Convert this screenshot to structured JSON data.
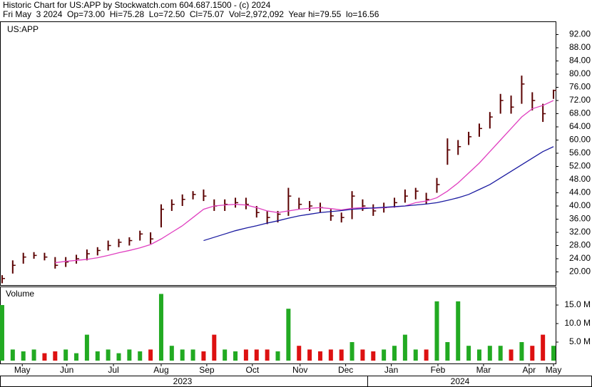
{
  "chart_data": {
    "type": "ohlc",
    "title": "Historic Chart for US:APP by Stockwatch.com 604.687.1500 - (c) 2024",
    "subtitle": "Fri May  3 2024  Op=73.00  Hi=75.28  Lo=72.50  Cl=75.07  Vol=2,972,092  Year hi=79.55  lo=16.56",
    "symbol": "US:APP",
    "volume_label": "Volume",
    "x": [
      0,
      1,
      2,
      3,
      4,
      5,
      6,
      7,
      8,
      9,
      10,
      11,
      12,
      13,
      14,
      15,
      16,
      17,
      18,
      19,
      20,
      21,
      22,
      23,
      24,
      25,
      26,
      27,
      28,
      29,
      30,
      31,
      32,
      33,
      34,
      35,
      36,
      37,
      38,
      39,
      40,
      41,
      42,
      43,
      44,
      45,
      46,
      47,
      48,
      49,
      50,
      51,
      52
    ],
    "xlim": [
      -0.2,
      52.2
    ],
    "xticks": [
      {
        "value": 1.9,
        "label": "May"
      },
      {
        "value": 6.1,
        "label": "Jun"
      },
      {
        "value": 10.5,
        "label": "Jul"
      },
      {
        "value": 15,
        "label": "Aug"
      },
      {
        "value": 19.3,
        "label": "Sep"
      },
      {
        "value": 23.6,
        "label": "Oct"
      },
      {
        "value": 28.1,
        "label": "Nov"
      },
      {
        "value": 32.4,
        "label": "Dec"
      },
      {
        "value": 36.7,
        "label": "Jan"
      },
      {
        "value": 41.1,
        "label": "Feb"
      },
      {
        "value": 45.4,
        "label": "Mar"
      },
      {
        "value": 49.7,
        "label": "Apr"
      },
      {
        "value": 52,
        "label": "May"
      }
    ],
    "years": [
      "2023",
      "2024"
    ],
    "high": [
      19,
      23.5,
      25.8,
      26,
      25.8,
      24.5,
      24.5,
      25.2,
      26.8,
      27.5,
      29.5,
      30,
      30.5,
      32.5,
      32,
      40.5,
      42,
      43.5,
      44.5,
      45,
      42,
      42,
      42.5,
      42.5,
      40,
      38.5,
      38.5,
      45.5,
      42.5,
      41.5,
      41,
      39,
      38,
      44.5,
      42,
      40.5,
      41,
      42.5,
      45,
      45.5,
      44,
      48.5,
      60.5,
      60,
      62.5,
      65,
      68.5,
      74,
      73.5,
      79.55,
      74.5,
      71,
      75.28
    ],
    "low": [
      16.56,
      19.5,
      22.5,
      24,
      23.5,
      21,
      21.5,
      22.5,
      23.5,
      25,
      26.5,
      27.5,
      28,
      29.5,
      28.5,
      33.5,
      38.5,
      40,
      42,
      41.5,
      38.5,
      38.5,
      39.5,
      39,
      36.5,
      34.5,
      35,
      37,
      39,
      38.5,
      38,
      35.5,
      35,
      36,
      38.5,
      37,
      38,
      39.5,
      41,
      42,
      40.5,
      44,
      52.5,
      55.5,
      58.5,
      61,
      63.5,
      68,
      68,
      71,
      69,
      65.5,
      72.5
    ],
    "close": [
      18,
      22,
      24.5,
      25,
      24.5,
      22,
      23,
      24,
      25.5,
      26.5,
      28,
      29,
      29.5,
      31.5,
      30,
      39,
      40.5,
      42,
      43.5,
      43,
      40,
      40.5,
      41,
      40.5,
      38,
      36.5,
      37.5,
      43,
      40.5,
      40,
      39.5,
      37,
      36.5,
      43,
      40,
      38.5,
      39.5,
      41,
      43,
      44.5,
      42,
      46.5,
      57,
      58,
      61,
      63.5,
      67,
      72,
      70,
      77,
      72,
      68,
      75.07
    ],
    "bar_color": "#5a0000",
    "series": [
      {
        "name": "short average",
        "color": "#e040c0",
        "values": [
          null,
          null,
          null,
          null,
          null,
          22.8,
          23.2,
          23.5,
          23.8,
          24.3,
          25,
          25.8,
          26.5,
          27.3,
          28.3,
          30,
          32,
          34,
          36.5,
          39,
          40,
          40.3,
          40.5,
          40.3,
          39.5,
          38.5,
          38,
          38.5,
          39,
          39.3,
          39.5,
          39.2,
          38.8,
          39.3,
          39.5,
          39.3,
          39.5,
          39.7,
          40,
          41,
          41.5,
          42.5,
          44.5,
          47,
          50,
          53,
          56.5,
          60,
          63.5,
          67,
          69.5,
          70.5,
          72
        ]
      },
      {
        "name": "long average",
        "color": "#1a1aa0",
        "values": [
          null,
          null,
          null,
          null,
          null,
          null,
          null,
          null,
          null,
          null,
          null,
          null,
          null,
          null,
          null,
          null,
          null,
          null,
          null,
          29.5,
          30.5,
          31.5,
          32.5,
          33.3,
          34,
          34.8,
          35.5,
          36.3,
          37,
          37.5,
          38,
          38.3,
          38.6,
          39,
          39.2,
          39.4,
          39.6,
          39.8,
          40,
          40.3,
          40.6,
          41,
          41.7,
          42.5,
          43.5,
          45,
          46.5,
          48.5,
          50.5,
          52.5,
          54.5,
          56.5,
          58
        ]
      }
    ],
    "ylim": [
      16,
      96
    ],
    "yticks": [
      {
        "value": 20,
        "label": "20.00"
      },
      {
        "value": 24,
        "label": "24.00"
      },
      {
        "value": 28,
        "label": "28.00"
      },
      {
        "value": 32,
        "label": "32.00"
      },
      {
        "value": 36,
        "label": "36.00"
      },
      {
        "value": 40,
        "label": "40.00"
      },
      {
        "value": 44,
        "label": "44.00"
      },
      {
        "value": 48,
        "label": "48.00"
      },
      {
        "value": 52,
        "label": "52.00"
      },
      {
        "value": 56,
        "label": "56.00"
      },
      {
        "value": 60,
        "label": "60.00"
      },
      {
        "value": 64,
        "label": "64.00"
      },
      {
        "value": 68,
        "label": "68.00"
      },
      {
        "value": 72,
        "label": "72.00"
      },
      {
        "value": 76,
        "label": "76.00"
      },
      {
        "value": 80,
        "label": "80.00"
      },
      {
        "value": 84,
        "label": "84.00"
      },
      {
        "value": 88,
        "label": "88.00"
      },
      {
        "value": 92,
        "label": "92.00"
      }
    ],
    "volume": [
      15,
      3,
      2.5,
      3,
      2,
      2.5,
      3,
      2,
      7,
      2.5,
      3,
      2,
      3,
      2.5,
      3,
      18,
      4,
      3,
      3,
      2.5,
      7,
      3,
      2.5,
      3,
      3,
      3,
      2.5,
      14,
      4,
      3,
      2.5,
      3,
      3,
      5,
      3,
      2.5,
      3,
      4,
      7,
      3,
      3,
      16,
      5,
      16,
      4,
      3,
      4,
      4,
      3,
      5,
      4,
      7,
      4
    ],
    "volume_up_color": "#22aa22",
    "volume_down_color": "#dd1111",
    "y2lim": [
      0,
      20
    ],
    "y2ticks": [
      {
        "value": 5,
        "label": "5.0 M"
      },
      {
        "value": 10,
        "label": "10.0 M"
      },
      {
        "value": 15,
        "label": "15.0 M"
      }
    ]
  }
}
